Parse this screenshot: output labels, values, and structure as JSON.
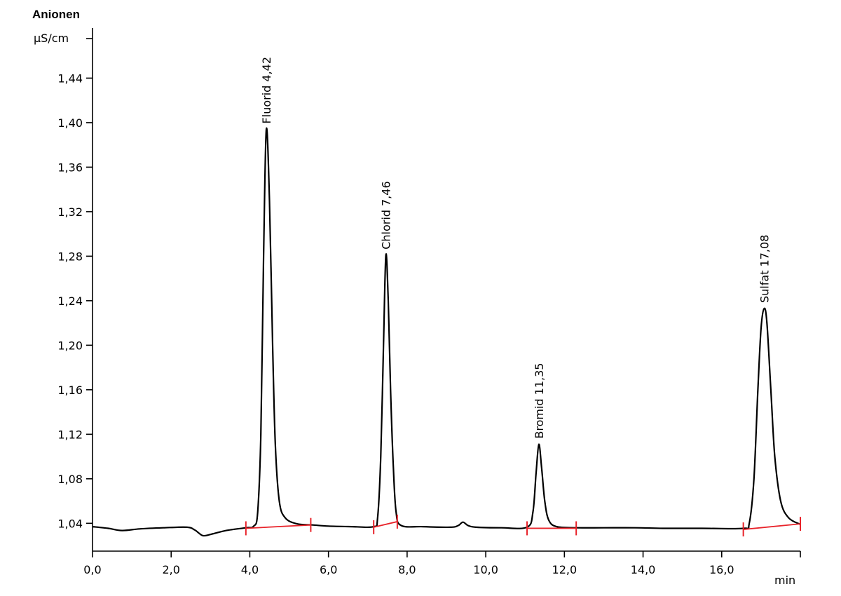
{
  "chart_data": {
    "type": "line",
    "title": "Anionen",
    "ylabel": "µS/cm",
    "xlabel": "min",
    "xlim": [
      0,
      18
    ],
    "ylim": [
      1.015,
      1.485
    ],
    "grid": false,
    "x_ticks": [
      0,
      2,
      4,
      6,
      8,
      10,
      12,
      14,
      16
    ],
    "x_tick_labels": [
      "0,0",
      "2,0",
      "4,0",
      "6,0",
      "8,0",
      "10,0",
      "12,0",
      "14,0",
      "16,0"
    ],
    "y_ticks": [
      1.04,
      1.08,
      1.12,
      1.16,
      1.2,
      1.24,
      1.28,
      1.32,
      1.36,
      1.4,
      1.44
    ],
    "y_tick_labels": [
      "1,04",
      "1,08",
      "1,12",
      "1,16",
      "1,20",
      "1,24",
      "1,28",
      "1,32",
      "1,36",
      "1,40",
      "1,44"
    ],
    "series": [
      {
        "values": [
          [
            0.0,
            1.037
          ],
          [
            0.4,
            1.0355
          ],
          [
            0.75,
            1.0335
          ],
          [
            1.2,
            1.035
          ],
          [
            1.8,
            1.036
          ],
          [
            2.4,
            1.0365
          ],
          [
            2.6,
            1.034
          ],
          [
            2.8,
            1.029
          ],
          [
            3.0,
            1.03
          ],
          [
            3.4,
            1.0335
          ],
          [
            3.9,
            1.036
          ],
          [
            4.1,
            1.0375
          ],
          [
            4.2,
            1.05
          ],
          [
            4.28,
            1.12
          ],
          [
            4.35,
            1.28
          ],
          [
            4.42,
            1.394
          ],
          [
            4.5,
            1.33
          ],
          [
            4.58,
            1.2
          ],
          [
            4.65,
            1.11
          ],
          [
            4.75,
            1.06
          ],
          [
            4.9,
            1.045
          ],
          [
            5.2,
            1.0395
          ],
          [
            5.6,
            1.0385
          ],
          [
            6.0,
            1.0375
          ],
          [
            6.6,
            1.037
          ],
          [
            7.15,
            1.037
          ],
          [
            7.25,
            1.045
          ],
          [
            7.33,
            1.1
          ],
          [
            7.4,
            1.2
          ],
          [
            7.46,
            1.281
          ],
          [
            7.52,
            1.24
          ],
          [
            7.58,
            1.16
          ],
          [
            7.65,
            1.09
          ],
          [
            7.72,
            1.05
          ],
          [
            7.85,
            1.038
          ],
          [
            8.4,
            1.037
          ],
          [
            9.1,
            1.0365
          ],
          [
            9.3,
            1.038
          ],
          [
            9.42,
            1.041
          ],
          [
            9.55,
            1.038
          ],
          [
            9.75,
            1.0365
          ],
          [
            10.4,
            1.036
          ],
          [
            11.05,
            1.0365
          ],
          [
            11.2,
            1.05
          ],
          [
            11.28,
            1.085
          ],
          [
            11.35,
            1.111
          ],
          [
            11.42,
            1.09
          ],
          [
            11.5,
            1.06
          ],
          [
            11.6,
            1.043
          ],
          [
            11.8,
            1.037
          ],
          [
            12.3,
            1.036
          ],
          [
            13.0,
            1.036
          ],
          [
            13.8,
            1.036
          ],
          [
            14.5,
            1.0355
          ],
          [
            15.5,
            1.0355
          ],
          [
            16.55,
            1.0355
          ],
          [
            16.7,
            1.04
          ],
          [
            16.82,
            1.08
          ],
          [
            16.92,
            1.16
          ],
          [
            17.0,
            1.215
          ],
          [
            17.08,
            1.233
          ],
          [
            17.15,
            1.22
          ],
          [
            17.25,
            1.16
          ],
          [
            17.35,
            1.1
          ],
          [
            17.5,
            1.06
          ],
          [
            17.7,
            1.045
          ],
          [
            18.0,
            1.039
          ]
        ]
      }
    ],
    "peaks": [
      {
        "label": "Fluorid 4,42",
        "x": 4.42,
        "y": 1.394
      },
      {
        "label": "Chlorid 7,46",
        "x": 7.46,
        "y": 1.281
      },
      {
        "label": "Bromid 11,35",
        "x": 11.35,
        "y": 1.111
      },
      {
        "label": "Sulfat 17,08",
        "x": 17.08,
        "y": 1.233
      }
    ],
    "integration_baselines": [
      {
        "x1": 3.9,
        "y1": 1.0355,
        "x2": 5.55,
        "y2": 1.0385
      },
      {
        "x1": 7.15,
        "y1": 1.0365,
        "x2": 7.75,
        "y2": 1.0415
      },
      {
        "x1": 11.05,
        "y1": 1.0355,
        "x2": 12.3,
        "y2": 1.0355
      },
      {
        "x1": 16.55,
        "y1": 1.0345,
        "x2": 18.0,
        "y2": 1.0395
      }
    ],
    "colors": {
      "trace": "#000000",
      "baseline": "#e8232a"
    }
  }
}
